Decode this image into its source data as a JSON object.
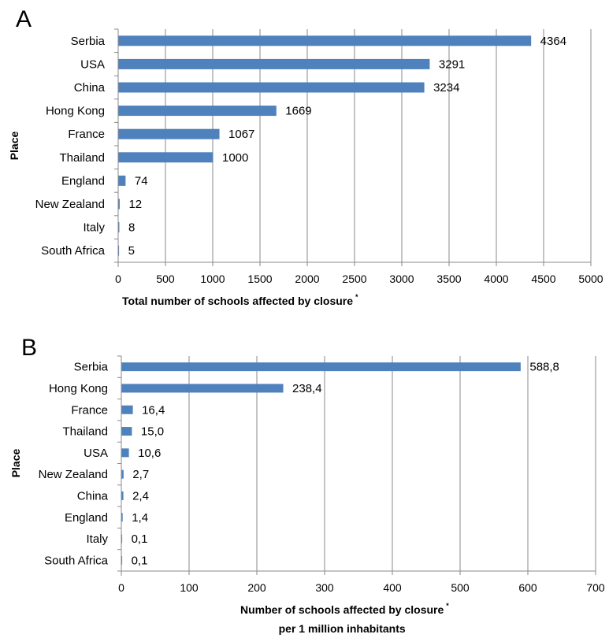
{
  "chart_data": [
    {
      "panel": "A",
      "type": "bar",
      "orientation": "horizontal",
      "categories": [
        "Serbia",
        "USA",
        "China",
        "Hong Kong",
        "France",
        "Thailand",
        "England",
        "New Zealand",
        "Italy",
        "South Africa"
      ],
      "values": [
        4364,
        3291,
        3234,
        1669,
        1067,
        1000,
        74,
        12,
        8,
        5
      ],
      "data_labels": [
        "4364",
        "3291",
        "3234",
        "1669",
        "1067",
        "1000",
        "74",
        "12",
        "8",
        "5"
      ],
      "xlabel": "Total number of schools affected by closure",
      "xlabel_mark": "*",
      "ylabel": "Place",
      "xlim": [
        0,
        5000
      ],
      "xticks": [
        0,
        500,
        1000,
        1500,
        2000,
        2500,
        3000,
        3500,
        4000,
        4500,
        5000
      ],
      "grid": "vertical",
      "color": "#4f81bd"
    },
    {
      "panel": "B",
      "type": "bar",
      "orientation": "horizontal",
      "categories": [
        "Serbia",
        "Hong Kong",
        "France",
        "Thailand",
        "USA",
        "New Zealand",
        "China",
        "England",
        "Italy",
        "South Africa"
      ],
      "values": [
        588.8,
        238.4,
        16.4,
        15.0,
        10.6,
        2.7,
        2.4,
        1.4,
        0.1,
        0.1
      ],
      "data_labels": [
        "588,8",
        "238,4",
        "16,4",
        "15,0",
        "10,6",
        "2,7",
        "2,4",
        "1,4",
        "0,1",
        "0,1"
      ],
      "xlabel": "Number of schools affected by closure",
      "xlabel_mark": "*",
      "xlabel_line2": "per 1 million inhabitants",
      "ylabel": "Place",
      "xlim": [
        0,
        700
      ],
      "xticks": [
        0,
        100,
        200,
        300,
        400,
        500,
        600,
        700
      ],
      "grid": "vertical",
      "color": "#4f81bd"
    }
  ]
}
